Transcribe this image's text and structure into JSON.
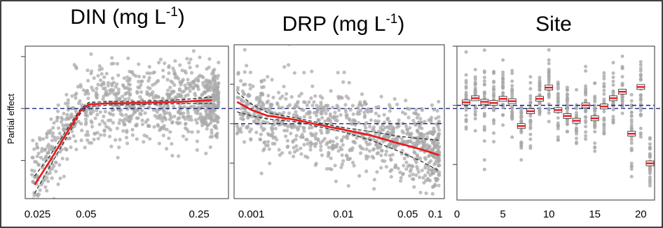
{
  "figure": {
    "y_axis_label": "Partial effect",
    "colors": {
      "points": "#a9a9a9",
      "fit_line": "#e8171b",
      "confidence_band": "#333333",
      "reference_line": "#1a237e",
      "axes": "#555555"
    }
  },
  "chart_data": [
    {
      "type": "scatter",
      "title_main": "DIN (mg L",
      "title_sup": "-1",
      "title_end": ")",
      "x_scale": "log",
      "xlim": [
        0.021,
        0.38
      ],
      "ylim": [
        -2.6,
        1.8
      ],
      "x_ticks": [
        0.025,
        0.05,
        0.25
      ],
      "x_tick_labels": [
        "0.025",
        "0.05",
        "0.25"
      ],
      "y_ticks": [
        -1.5,
        0,
        1.5
      ],
      "reference_y": 0,
      "fit_line": {
        "x": [
          0.024,
          0.03,
          0.038,
          0.046,
          0.052,
          0.07,
          0.1,
          0.15,
          0.2,
          0.3
        ],
        "y": [
          -2.2,
          -1.5,
          -0.7,
          -0.08,
          0.12,
          0.15,
          0.16,
          0.18,
          0.2,
          0.24
        ]
      },
      "confidence_band": {
        "upper": {
          "x": [
            0.024,
            0.03,
            0.038,
            0.046,
            0.052,
            0.07,
            0.1,
            0.15,
            0.2,
            0.3
          ],
          "y": [
            -1.95,
            -1.35,
            -0.6,
            -0.02,
            0.18,
            0.2,
            0.21,
            0.23,
            0.26,
            0.33
          ]
        },
        "lower": {
          "x": [
            0.024,
            0.03,
            0.038,
            0.046,
            0.052,
            0.07,
            0.1,
            0.15,
            0.2,
            0.3
          ],
          "y": [
            -2.45,
            -1.65,
            -0.82,
            -0.15,
            0.06,
            0.1,
            0.11,
            0.13,
            0.14,
            0.15
          ]
        }
      },
      "scatter_profile": {
        "x": [
          0.024,
          0.03,
          0.038,
          0.046,
          0.055,
          0.08,
          0.12,
          0.2,
          0.3
        ],
        "y": [
          -2.1,
          -1.4,
          -0.6,
          0.0,
          0.15,
          0.15,
          0.17,
          0.2,
          0.22
        ],
        "spread": 0.55,
        "n_points": 950,
        "x_min": 0.023,
        "x_max": 0.33
      }
    },
    {
      "type": "scatter",
      "title_main": "DRP (mg L",
      "title_sup": "-1",
      "title_end": ")",
      "x_scale": "log",
      "xlim": [
        0.00065,
        0.125
      ],
      "ylim": [
        -1.9,
        2.0
      ],
      "x_ticks": [
        0.001,
        0.01,
        0.05,
        0.1
      ],
      "x_tick_labels": [
        "0.001",
        "0.01",
        "0.05",
        "0.1"
      ],
      "y_ticks": [
        -1,
        0,
        1
      ],
      "reference_y": 0,
      "fit_line": {
        "x": [
          0.0007,
          0.001,
          0.0015,
          0.003,
          0.006,
          0.01,
          0.02,
          0.04,
          0.07,
          0.11
        ],
        "y": [
          0.55,
          0.35,
          0.2,
          0.1,
          -0.05,
          -0.15,
          -0.3,
          -0.5,
          -0.65,
          -0.8
        ]
      },
      "confidence_band": {
        "upper": {
          "x": [
            0.0007,
            0.001,
            0.0015,
            0.003,
            0.006,
            0.01,
            0.02,
            0.04,
            0.07,
            0.11
          ],
          "y": [
            0.8,
            0.5,
            0.28,
            0.15,
            0.0,
            -0.1,
            -0.2,
            -0.32,
            -0.38,
            -0.42
          ]
        },
        "lower": {
          "x": [
            0.0007,
            0.001,
            0.0015,
            0.003,
            0.006,
            0.01,
            0.02,
            0.04,
            0.07,
            0.11
          ],
          "y": [
            0.3,
            0.2,
            0.12,
            0.05,
            -0.1,
            -0.21,
            -0.42,
            -0.7,
            -0.95,
            -1.2
          ]
        }
      },
      "scatter_profile": {
        "x": [
          0.0007,
          0.001,
          0.002,
          0.005,
          0.01,
          0.03,
          0.1
        ],
        "y": [
          0.5,
          0.3,
          0.15,
          0.0,
          -0.15,
          -0.4,
          -0.7
        ],
        "spread": 0.5,
        "n_points": 950,
        "x_min": 0.0007,
        "x_max": 0.11
      }
    },
    {
      "type": "scatter",
      "title_main": "Site",
      "title_sup": "",
      "title_end": "",
      "x_scale": "linear",
      "xlim": [
        0,
        21.5
      ],
      "ylim": [
        -1.6,
        1.0
      ],
      "x_ticks": [
        0,
        5,
        10,
        15,
        20
      ],
      "x_tick_labels": [
        "0",
        "5",
        "10",
        "15",
        "20"
      ],
      "y_ticks": [
        -1,
        0,
        1
      ],
      "reference_y": 0,
      "site_effects": [
        {
          "site": 1,
          "effect": 0.05
        },
        {
          "site": 2,
          "effect": 0.12
        },
        {
          "site": 3,
          "effect": 0.06
        },
        {
          "site": 4,
          "effect": 0.04
        },
        {
          "site": 5,
          "effect": 0.11
        },
        {
          "site": 6,
          "effect": 0.07
        },
        {
          "site": 7,
          "effect": -0.35
        },
        {
          "site": 8,
          "effect": -0.1
        },
        {
          "site": 9,
          "effect": 0.11
        },
        {
          "site": 10,
          "effect": 0.3
        },
        {
          "site": 11,
          "effect": -0.08
        },
        {
          "site": 12,
          "effect": -0.18
        },
        {
          "site": 13,
          "effect": -0.26
        },
        {
          "site": 14,
          "effect": 0.0
        },
        {
          "site": 15,
          "effect": -0.22
        },
        {
          "site": 16,
          "effect": -0.02
        },
        {
          "site": 17,
          "effect": 0.12
        },
        {
          "site": 18,
          "effect": 0.23
        },
        {
          "site": 19,
          "effect": -0.48
        },
        {
          "site": 20,
          "effect": 0.31
        },
        {
          "site": 21,
          "effect": -0.98
        }
      ],
      "site_spread": [
        0.55,
        0.5,
        0.7,
        0.55,
        0.6,
        0.55,
        0.45,
        0.5,
        0.55,
        0.6,
        0.5,
        0.45,
        0.4,
        0.5,
        0.45,
        0.55,
        0.5,
        0.5,
        0.6,
        0.75,
        0.5
      ]
    }
  ]
}
